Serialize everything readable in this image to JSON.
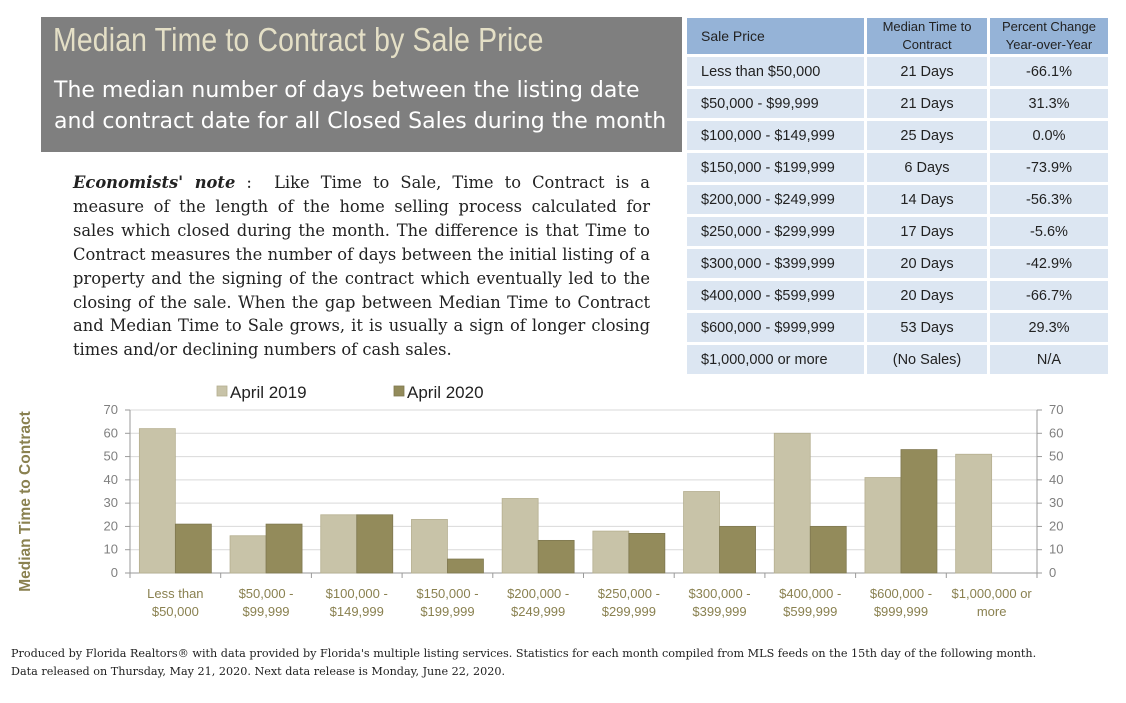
{
  "header": {
    "title": "Median Time to Contract by Sale Price",
    "subtitle": "The median number of days between the listing date and contract date for all Closed Sales during the month"
  },
  "note": {
    "label": "Economists' note",
    "text": "Like Time to Sale, Time to Contract is a measure of the length of the home selling process calculated for sales which closed during the month.  The difference is that Time to Contract measures the number of days between the initial listing of a property and the signing of the contract which eventually led to the closing of the sale. When the gap between Median Time to Contract and Median Time to Sale grows, it is usually a sign of longer closing times and/or declining numbers of cash sales."
  },
  "table": {
    "headers": [
      "Sale Price",
      "Median Time to Contract",
      "Percent Change Year-over-Year"
    ],
    "rows": [
      [
        "Less than $50,000",
        "21 Days",
        "-66.1%"
      ],
      [
        "$50,000 - $99,999",
        "21 Days",
        "31.3%"
      ],
      [
        "$100,000 - $149,999",
        "25 Days",
        "0.0%"
      ],
      [
        "$150,000 - $199,999",
        "6 Days",
        "-73.9%"
      ],
      [
        "$200,000 - $249,999",
        "14 Days",
        "-56.3%"
      ],
      [
        "$250,000 - $299,999",
        "17 Days",
        "-5.6%"
      ],
      [
        "$300,000 - $399,999",
        "20 Days",
        "-42.9%"
      ],
      [
        "$400,000 - $599,999",
        "20 Days",
        "-66.7%"
      ],
      [
        "$600,000 - $999,999",
        "53 Days",
        "29.3%"
      ],
      [
        "$1,000,000 or more",
        "(No Sales)",
        "N/A"
      ]
    ]
  },
  "chart_data": {
    "type": "bar",
    "categories": [
      "Less than $50,000",
      "$50,000 - $99,999",
      "$100,000 - $149,999",
      "$150,000 - $199,999",
      "$200,000 - $249,999",
      "$250,000 - $299,999",
      "$300,000 - $399,999",
      "$400,000 - $599,999",
      "$600,000 - $999,999",
      "$1,000,000 or more"
    ],
    "tick_lines": [
      [
        "Less than",
        "$50,000"
      ],
      [
        "$50,000 -",
        "$99,999"
      ],
      [
        "$100,000 -",
        "$149,999"
      ],
      [
        "$150,000 -",
        "$199,999"
      ],
      [
        "$200,000 -",
        "$249,999"
      ],
      [
        "$250,000 -",
        "$299,999"
      ],
      [
        "$300,000 -",
        "$399,999"
      ],
      [
        "$400,000 -",
        "$599,999"
      ],
      [
        "$600,000 -",
        "$999,999"
      ],
      [
        "$1,000,000 or",
        "more"
      ]
    ],
    "series": [
      {
        "name": "April 2019",
        "color": "#c8c3a8",
        "values": [
          62,
          16,
          25,
          23,
          32,
          18,
          35,
          60,
          41,
          51
        ]
      },
      {
        "name": "April 2020",
        "color": "#938b5b",
        "values": [
          21,
          21,
          25,
          6,
          14,
          17,
          20,
          20,
          53,
          null
        ]
      }
    ],
    "ylabel": "Median Time to Contract",
    "ylim": [
      0,
      70
    ],
    "yticks": [
      0,
      10,
      20,
      30,
      40,
      50,
      60,
      70
    ],
    "grid": true,
    "legend": "top-center"
  },
  "footer": {
    "line1": "Produced by Florida Realtors® with data provided by Florida's multiple listing services. Statistics for each month compiled from MLS feeds on the 15th day of the following month.",
    "line2": "Data released on Thursday, May 21, 2020. Next data release is Monday, June 22, 2020."
  }
}
